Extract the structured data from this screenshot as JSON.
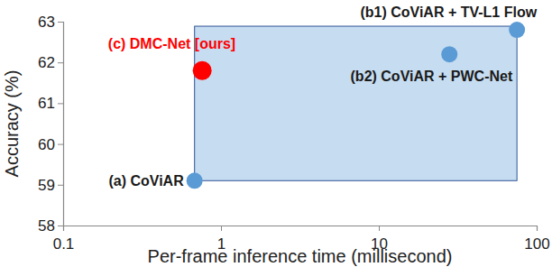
{
  "chart_data": {
    "type": "scatter",
    "x": [
      0.68,
      75,
      28,
      0.76
    ],
    "values": [
      59.1,
      62.8,
      62.2,
      61.8
    ],
    "annotations": [
      "(a) CoViAR",
      "(b1) CoViAR + TV-L1 Flow",
      "(b2) CoViAR + PWC-Net",
      "(c) DMC-Net [ours]"
    ],
    "colors": [
      "#5b9bd5",
      "#5b9bd5",
      "#5b9bd5",
      "#ff0000"
    ],
    "color": "#5b9bd5",
    "x_label": "Per-frame inference time (millisecond)",
    "y_label": "Accuracy (%)",
    "log": "x",
    "xlim": [
      0.1,
      100
    ],
    "xticks": [
      0.1,
      1,
      10,
      100
    ],
    "ylim": [
      58,
      63
    ],
    "yticks": [
      58,
      59,
      60,
      61,
      62,
      63
    ],
    "grid": false
  }
}
